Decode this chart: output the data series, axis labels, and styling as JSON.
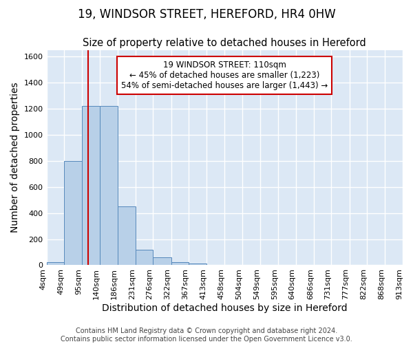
{
  "title": "19, WINDSOR STREET, HEREFORD, HR4 0HW",
  "subtitle": "Size of property relative to detached houses in Hereford",
  "xlabel": "Distribution of detached houses by size in Hereford",
  "ylabel": "Number of detached properties",
  "footer_line1": "Contains HM Land Registry data © Crown copyright and database right 2024.",
  "footer_line2": "Contains public sector information licensed under the Open Government Licence v3.0.",
  "bin_edges": [
    4,
    49,
    95,
    140,
    186,
    231,
    276,
    322,
    367,
    413,
    458,
    504,
    549,
    595,
    640,
    686,
    731,
    777,
    822,
    868,
    913
  ],
  "bar_heights": [
    25,
    800,
    1220,
    1220,
    450,
    120,
    60,
    25,
    15,
    0,
    0,
    0,
    0,
    0,
    0,
    0,
    0,
    0,
    0,
    0
  ],
  "bar_color": "#b8d0e8",
  "bar_edge_color": "#5588bb",
  "vline_x": 110,
  "vline_color": "#cc0000",
  "ylim": [
    0,
    1650
  ],
  "yticks": [
    0,
    200,
    400,
    600,
    800,
    1000,
    1200,
    1400,
    1600
  ],
  "annotation_line1": "19 WINDSOR STREET: 110sqm",
  "annotation_line2": "← 45% of detached houses are smaller (1,223)",
  "annotation_line3": "54% of semi-detached houses are larger (1,443) →",
  "annotation_box_color": "white",
  "annotation_box_edge_color": "#cc0000",
  "bg_color": "#dce8f5",
  "grid_color": "white",
  "title_fontsize": 12,
  "subtitle_fontsize": 10.5,
  "axis_label_fontsize": 10,
  "tick_fontsize": 8,
  "annotation_fontsize": 8.5,
  "footer_fontsize": 7
}
